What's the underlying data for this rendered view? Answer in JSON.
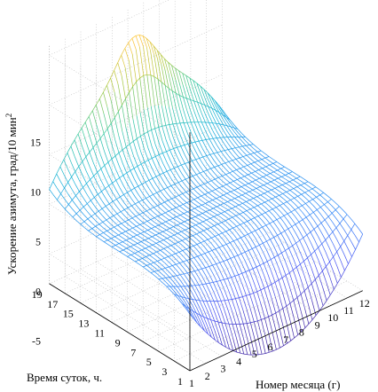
{
  "chart_data": {
    "type": "surface-mesh",
    "title": "",
    "zlabel": "Ускорение азимута, град/10 мин",
    "zlabel_sup": "2",
    "xlabel": "Номер месяца (г)",
    "ylabel": "Время суток, ч.",
    "x_ticks": [
      "1",
      "2",
      "3",
      "4",
      "5",
      "6",
      "7",
      "8",
      "9",
      "10",
      "11",
      "12"
    ],
    "y_ticks": [
      "1",
      "3",
      "5",
      "7",
      "9",
      "11",
      "13",
      "15",
      "17",
      "19"
    ],
    "z_ticks": [
      "-5",
      "0",
      "5",
      "10",
      "15"
    ],
    "xlim": [
      1,
      12
    ],
    "ylim": [
      1,
      19
    ],
    "zlim": [
      -8,
      16
    ],
    "grid": true,
    "colormap": "parula",
    "series": [
      {
        "name": "",
        "description": ""
      }
    ]
  }
}
